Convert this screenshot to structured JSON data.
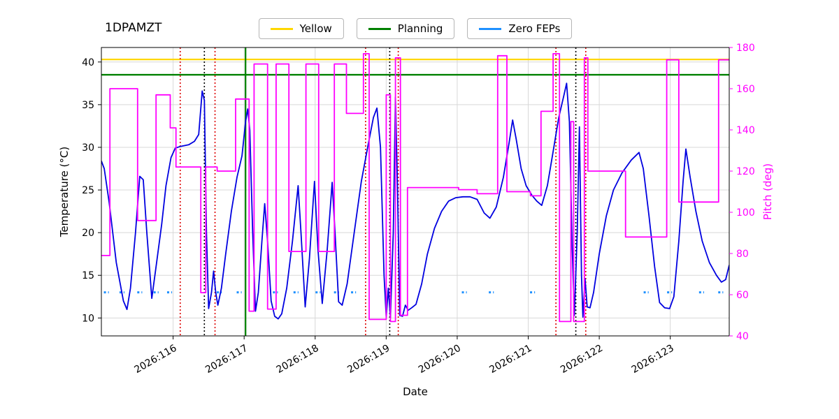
{
  "title": "1DPAMZT",
  "legend": [
    {
      "label": "Yellow",
      "color": "#ffd700"
    },
    {
      "label": "Planning",
      "color": "#008000"
    },
    {
      "label": "Zero FEPs",
      "color": "#1e90ff"
    }
  ],
  "chart_data": {
    "type": "line",
    "title": "1DPAMZT",
    "xlabel": "Date",
    "ylabel_left": "Temperature (°C)",
    "ylabel_right": "Pitch (deg)",
    "grid": true,
    "legend_position": "top-center",
    "xlim": [
      114.99,
      123.83
    ],
    "ylim_left": [
      7.9,
      41.7
    ],
    "ylim_right": [
      40,
      180
    ],
    "x_ticks": [
      {
        "value": 116,
        "label": "2026:116"
      },
      {
        "value": 117,
        "label": "2026:117"
      },
      {
        "value": 118,
        "label": "2026:118"
      },
      {
        "value": 119,
        "label": "2026:119"
      },
      {
        "value": 120,
        "label": "2026:120"
      },
      {
        "value": 121,
        "label": "2026:121"
      },
      {
        "value": 122,
        "label": "2026:122"
      },
      {
        "value": 123,
        "label": "2026:123"
      }
    ],
    "y_ticks_left": [
      10,
      15,
      20,
      25,
      30,
      35,
      40
    ],
    "y_ticks_right": [
      40,
      60,
      80,
      100,
      120,
      140,
      160,
      180
    ],
    "limits": {
      "yellow": {
        "value": 40.3,
        "color": "#ffd700"
      },
      "planning": {
        "value": 38.5,
        "color": "#008000"
      }
    },
    "series": [
      {
        "name": "temperature",
        "axis": "left",
        "color": "#0000e0",
        "width": 1.8,
        "step": false,
        "x": [
          114.99,
          115.03,
          115.1,
          115.2,
          115.3,
          115.35,
          115.4,
          115.47,
          115.53,
          115.58,
          115.63,
          115.7,
          115.76,
          115.84,
          115.9,
          115.97,
          116.03,
          116.1,
          116.22,
          116.3,
          116.36,
          116.41,
          116.44,
          116.47,
          116.5,
          116.54,
          116.57,
          116.6,
          116.63,
          116.68,
          116.74,
          116.82,
          116.9,
          116.97,
          117.02,
          117.05,
          117.08,
          117.12,
          117.16,
          117.2,
          117.25,
          117.29,
          117.33,
          117.38,
          117.43,
          117.48,
          117.53,
          117.6,
          117.68,
          117.76,
          117.8,
          117.86,
          117.92,
          117.99,
          118.04,
          118.1,
          118.17,
          118.24,
          118.28,
          118.33,
          118.38,
          118.45,
          118.55,
          118.65,
          118.75,
          118.82,
          118.87,
          118.92,
          118.97,
          119.0,
          119.03,
          119.06,
          119.1,
          119.13,
          119.16,
          119.19,
          119.23,
          119.27,
          119.31,
          119.36,
          119.42,
          119.5,
          119.58,
          119.68,
          119.78,
          119.88,
          119.98,
          120.08,
          120.18,
          120.28,
          120.38,
          120.46,
          120.55,
          120.65,
          120.73,
          120.78,
          120.83,
          120.9,
          120.97,
          121.05,
          121.12,
          121.19,
          121.27,
          121.35,
          121.43,
          121.5,
          121.54,
          121.58,
          121.62,
          121.65,
          121.69,
          121.72,
          121.75,
          121.77,
          121.8,
          121.83,
          121.87,
          121.92,
          122.0,
          122.1,
          122.2,
          122.32,
          122.45,
          122.56,
          122.62,
          122.7,
          122.78,
          122.85,
          122.92,
          122.99,
          123.05,
          123.12,
          123.18,
          123.22,
          123.28,
          123.36,
          123.45,
          123.55,
          123.65,
          123.72,
          123.78,
          123.83
        ],
        "y": [
          28.4,
          27.5,
          23.5,
          16.5,
          12.0,
          11.0,
          13.5,
          20.0,
          26.6,
          26.2,
          20.0,
          12.3,
          16.0,
          21.0,
          25.5,
          28.8,
          29.9,
          30.1,
          30.3,
          30.7,
          31.5,
          36.6,
          35.5,
          20.0,
          11.1,
          13.0,
          15.5,
          13.0,
          11.5,
          13.5,
          17.5,
          22.5,
          26.5,
          29.0,
          33.0,
          34.5,
          32.0,
          20.0,
          10.8,
          13.0,
          19.0,
          23.4,
          19.0,
          12.0,
          10.2,
          9.9,
          10.5,
          13.5,
          19.0,
          25.5,
          20.0,
          11.3,
          17.0,
          26.0,
          18.0,
          11.7,
          18.0,
          25.9,
          20.0,
          11.9,
          11.5,
          14.0,
          20.0,
          26.0,
          30.5,
          33.5,
          34.6,
          30.0,
          15.0,
          10.1,
          13.5,
          10.0,
          20.0,
          35.9,
          25.0,
          10.3,
          10.2,
          11.5,
          10.9,
          11.2,
          11.6,
          14.0,
          17.5,
          20.5,
          22.5,
          23.7,
          24.1,
          24.2,
          24.2,
          23.9,
          22.3,
          21.7,
          23.0,
          26.5,
          30.5,
          33.2,
          31.0,
          27.5,
          25.5,
          24.4,
          23.7,
          23.2,
          25.5,
          29.5,
          33.5,
          36.0,
          37.5,
          33.0,
          18.0,
          10.3,
          20.0,
          32.4,
          15.0,
          10.1,
          14.6,
          11.3,
          11.2,
          13.0,
          17.5,
          22.0,
          25.0,
          27.0,
          28.5,
          29.4,
          27.5,
          22.0,
          16.0,
          11.8,
          11.2,
          11.1,
          12.5,
          19.0,
          26.0,
          29.8,
          26.5,
          22.5,
          19.0,
          16.5,
          15.0,
          14.2,
          14.5,
          16.2
        ]
      },
      {
        "name": "pitch",
        "axis": "right",
        "color": "#ff00ff",
        "width": 1.8,
        "step": true,
        "x": [
          114.99,
          115.11,
          115.5,
          115.76,
          115.96,
          116.04,
          116.39,
          116.46,
          116.62,
          116.88,
          117.07,
          117.14,
          117.33,
          117.45,
          117.63,
          117.87,
          118.05,
          118.27,
          118.44,
          118.68,
          118.76,
          119.0,
          119.06,
          119.13,
          119.2,
          119.3,
          120.02,
          120.28,
          120.57,
          120.7,
          121.03,
          121.18,
          121.35,
          121.44,
          121.6,
          121.64,
          121.79,
          121.84,
          122.37,
          122.95,
          123.12,
          123.68
        ],
        "y": [
          79,
          160,
          96,
          157,
          141,
          122,
          61,
          122,
          120,
          155,
          52,
          172,
          53,
          172,
          81,
          172,
          81,
          172,
          148,
          177,
          48,
          157,
          47,
          175,
          50,
          112,
          111,
          109,
          176,
          110,
          108,
          149,
          177,
          47,
          144,
          47,
          175,
          120,
          88,
          174,
          105,
          174
        ]
      }
    ],
    "zero_feps": {
      "y": 13,
      "color": "#1e90ff",
      "half_width": 0.035,
      "x_centers": [
        115.06,
        115.28,
        115.53,
        115.76,
        115.95,
        116.65,
        116.93,
        117.44,
        117.73,
        118.04,
        118.3,
        118.54,
        120.1,
        120.48,
        121.06,
        122.66,
        122.99,
        123.44,
        123.71
      ]
    },
    "vlines": [
      {
        "x": 116.1,
        "color": "#dd0000",
        "style": "dotted"
      },
      {
        "x": 116.44,
        "color": "#000000",
        "style": "dotted"
      },
      {
        "x": 116.59,
        "color": "#dd0000",
        "style": "dotted"
      },
      {
        "x": 117.02,
        "color": "#008000",
        "style": "solid"
      },
      {
        "x": 118.71,
        "color": "#dd0000",
        "style": "dotted"
      },
      {
        "x": 119.05,
        "color": "#000000",
        "style": "dotted"
      },
      {
        "x": 119.17,
        "color": "#dd0000",
        "style": "dotted"
      },
      {
        "x": 121.39,
        "color": "#dd0000",
        "style": "dotted"
      },
      {
        "x": 121.67,
        "color": "#000000",
        "style": "dotted"
      },
      {
        "x": 121.81,
        "color": "#dd0000",
        "style": "dotted"
      }
    ]
  }
}
